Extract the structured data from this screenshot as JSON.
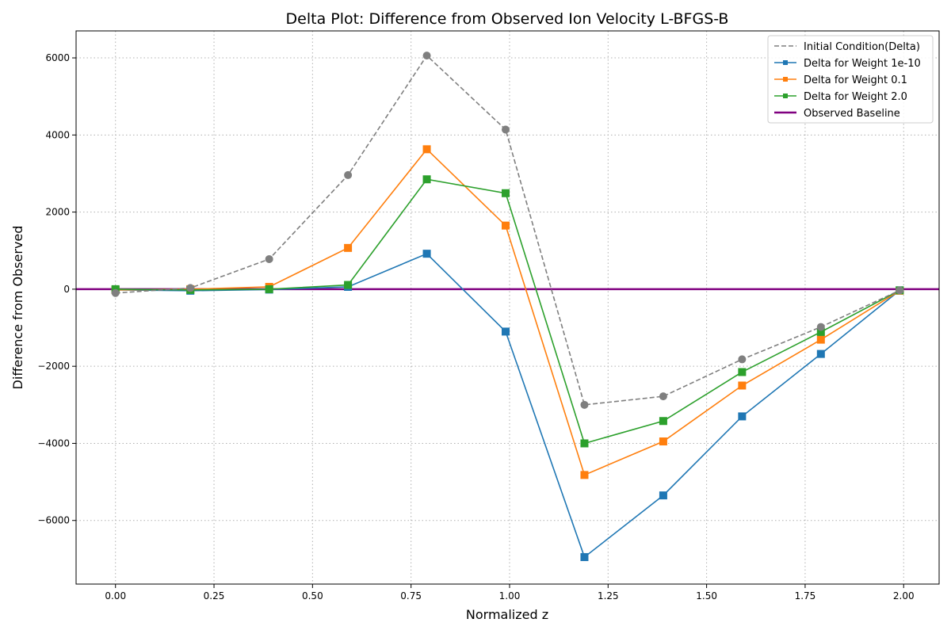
{
  "chart_data": {
    "type": "line",
    "title": "Delta Plot: Difference from Observed Ion Velocity L-BFGS-B",
    "xlabel": "Normalized z",
    "ylabel": "Difference from Observed",
    "xlim": [
      -0.1,
      2.09
    ],
    "ylim": [
      -7650,
      6700
    ],
    "x_ticks": [
      0.0,
      0.25,
      0.5,
      0.75,
      1.0,
      1.25,
      1.5,
      1.75,
      2.0
    ],
    "x_tick_labels": [
      "0.00",
      "0.25",
      "0.50",
      "0.75",
      "1.00",
      "1.25",
      "1.50",
      "1.75",
      "2.00"
    ],
    "y_ticks": [
      -6000,
      -4000,
      -2000,
      0,
      2000,
      4000,
      6000
    ],
    "y_tick_labels": [
      "−6000",
      "−4000",
      "−2000",
      "0",
      "2000",
      "4000",
      "6000"
    ],
    "grid": true,
    "legend_position": "top-right",
    "x": [
      0.0,
      0.19,
      0.39,
      0.59,
      0.79,
      0.99,
      1.19,
      1.39,
      1.59,
      1.79,
      1.99
    ],
    "series": [
      {
        "name": "Initial Condition(Delta)",
        "color": "#7f7f7f",
        "style": "dashed",
        "marker": "circle",
        "values": [
          -100,
          30,
          780,
          2960,
          6060,
          4140,
          -3000,
          -2780,
          -1820,
          -980,
          -30
        ]
      },
      {
        "name": "Delta for Weight 1e-10",
        "color": "#1f77b4",
        "style": "solid",
        "marker": "square",
        "values": [
          -20,
          -40,
          -10,
          60,
          920,
          -1100,
          -6950,
          -5350,
          -3300,
          -1680,
          -30
        ]
      },
      {
        "name": "Delta for Weight 0.1",
        "color": "#ff7f0e",
        "style": "solid",
        "marker": "square",
        "values": [
          -20,
          0,
          60,
          1070,
          3630,
          1650,
          -4820,
          -3950,
          -2500,
          -1310,
          -40
        ]
      },
      {
        "name": "Delta for Weight 2.0",
        "color": "#2ca02c",
        "style": "solid",
        "marker": "square",
        "values": [
          0,
          -20,
          0,
          110,
          2850,
          2490,
          -4000,
          -3420,
          -2150,
          -1110,
          -30
        ]
      }
    ],
    "baseline": {
      "name": "Observed Baseline",
      "color": "#800080",
      "value": 0
    }
  }
}
